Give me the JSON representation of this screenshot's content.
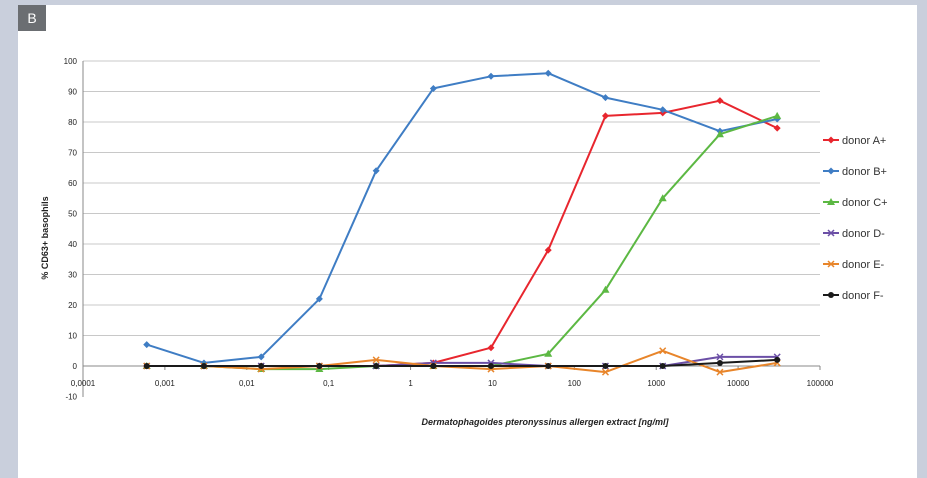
{
  "panel": {
    "label": "B"
  },
  "chart_data": {
    "type": "line",
    "xlabel": "Dermatophagoides pteronyssinus allergen extract [ng/ml]",
    "ylabel": "% CD63+ basophils",
    "xscale": "log",
    "xlim": [
      0.0001,
      100000
    ],
    "ylim": [
      -10,
      100
    ],
    "x_tick_labels": [
      "0,0001",
      "0,001",
      "0,01",
      "0,1",
      "1",
      "10",
      "100",
      "1000",
      "10000",
      "100000"
    ],
    "y_ticks": [
      -10,
      0,
      10,
      20,
      30,
      40,
      50,
      60,
      70,
      80,
      90,
      100
    ],
    "grid": "horizontal",
    "legend": "right",
    "x": [
      0.0006,
      0.003,
      0.015,
      0.077,
      0.38,
      1.9,
      9.6,
      48,
      240,
      1200,
      6000,
      30000
    ],
    "series": [
      {
        "name": "donor A+",
        "color": "#e8262e",
        "marker": "diamond",
        "values": [
          0,
          0,
          0,
          0,
          0,
          1,
          6,
          38,
          82,
          83,
          87,
          78
        ]
      },
      {
        "name": "donor B+",
        "color": "#3f7dc4",
        "marker": "diamond",
        "values": [
          7,
          1,
          3,
          22,
          64,
          91,
          95,
          96,
          88,
          84,
          77,
          81
        ]
      },
      {
        "name": "donor C+",
        "color": "#5cb843",
        "marker": "triangle",
        "values": [
          0,
          0,
          -1,
          -1,
          0,
          0,
          0,
          4,
          25,
          55,
          76,
          82
        ]
      },
      {
        "name": "donor D-",
        "color": "#6b4fa6",
        "marker": "x",
        "values": [
          0,
          0,
          0,
          0,
          0,
          1,
          1,
          0,
          0,
          0,
          3,
          3
        ]
      },
      {
        "name": "donor E-",
        "color": "#e8852a",
        "marker": "x",
        "values": [
          0,
          0,
          -1,
          0,
          2,
          0,
          -1,
          0,
          -2,
          5,
          -2,
          1
        ]
      },
      {
        "name": "donor F-",
        "color": "#1a1a1a",
        "marker": "circle",
        "values": [
          0,
          0,
          0,
          0,
          0,
          0,
          0,
          0,
          0,
          0,
          1,
          2
        ]
      }
    ]
  }
}
